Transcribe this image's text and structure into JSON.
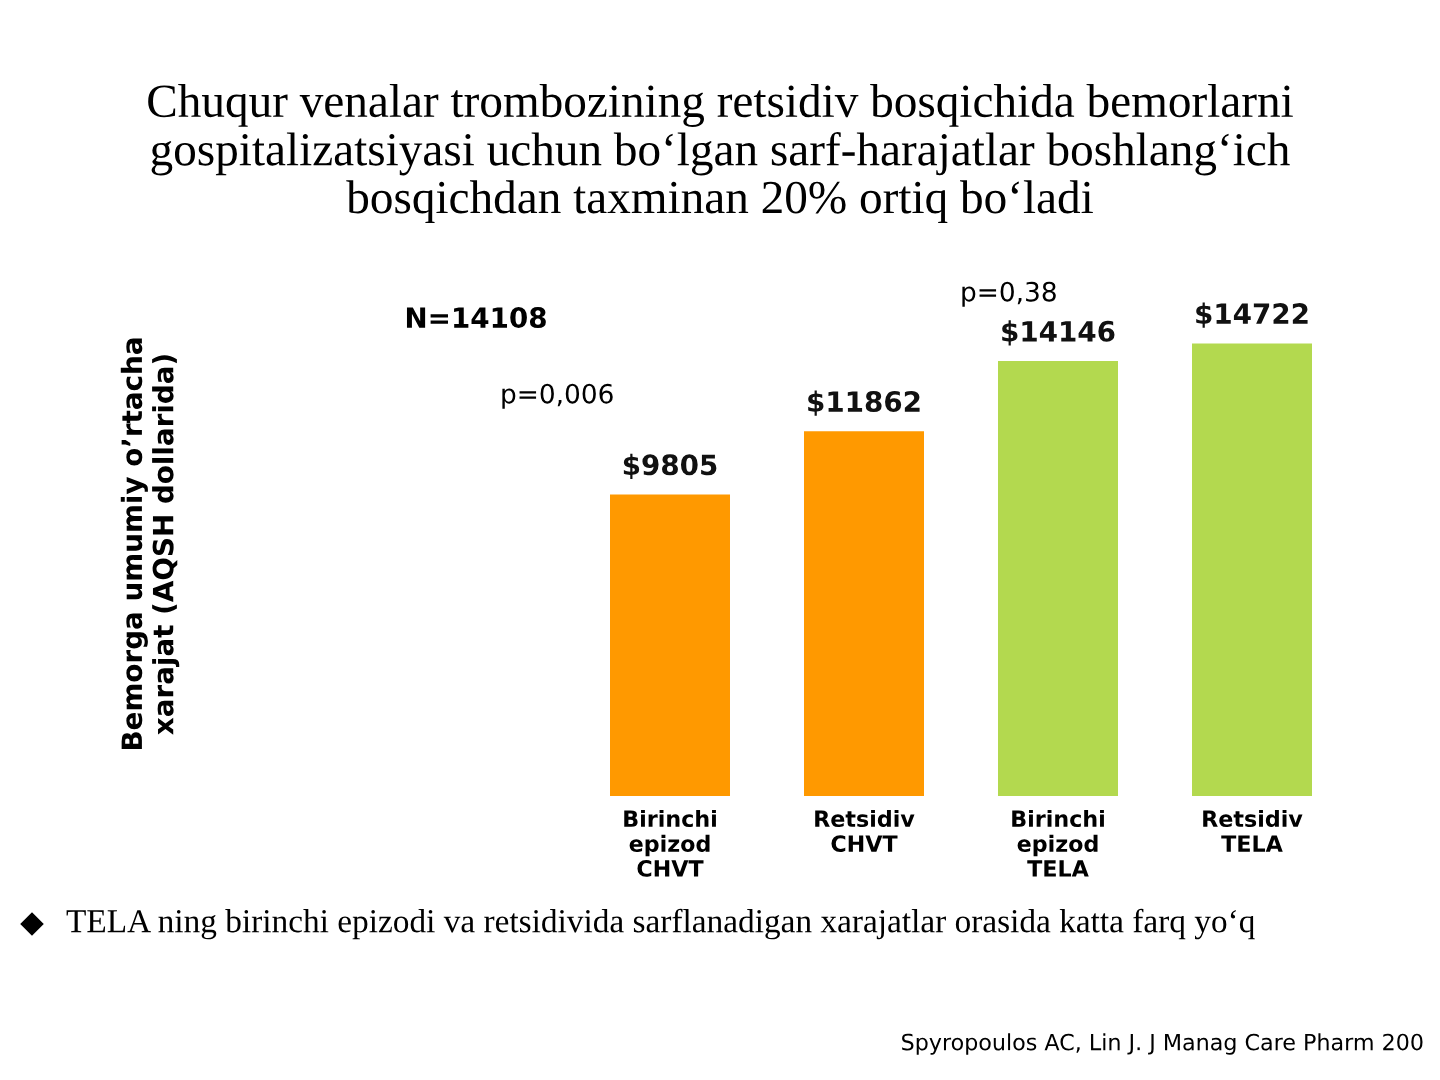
{
  "chart_data": {
    "type": "bar",
    "title": "Chuqur venalar trombozining retsidiv bosqichida bemorlarni\ngospitalizatsiyasi uchun bo‘lgan sarf-harajatlar boshlang‘ich\nbosqichdan taxminan 20% ortiq bo‘ladi",
    "categories": [
      "Birinchi\nepizod\nCHVT",
      "Retsidiv\nCHVT",
      "Birinchi\nepizod\nTELA",
      "Retsidiv\nTELA"
    ],
    "values": [
      9805,
      11862,
      14146,
      14722
    ],
    "colors": [
      "#ff9900",
      "#ff9900",
      "#b3d94f",
      "#b3d94f"
    ],
    "value_labels": [
      "$9805",
      "$11862",
      "$14146",
      "$14722"
    ],
    "annotations": [
      "Bemorga umumiy o’rtacha\nxarajat (AQSH dollarida)",
      "N=14108",
      "p=0,006",
      "p=0,38",
      "TELA ning birinchi epizodi va retsidivida sarflanadigan xarajatlar orasida katta farq yo‘q",
      "Spyropoulos AC, Lin J. J Manag Care Pharm 200"
    ],
    "tick_labels": "x"
  }
}
